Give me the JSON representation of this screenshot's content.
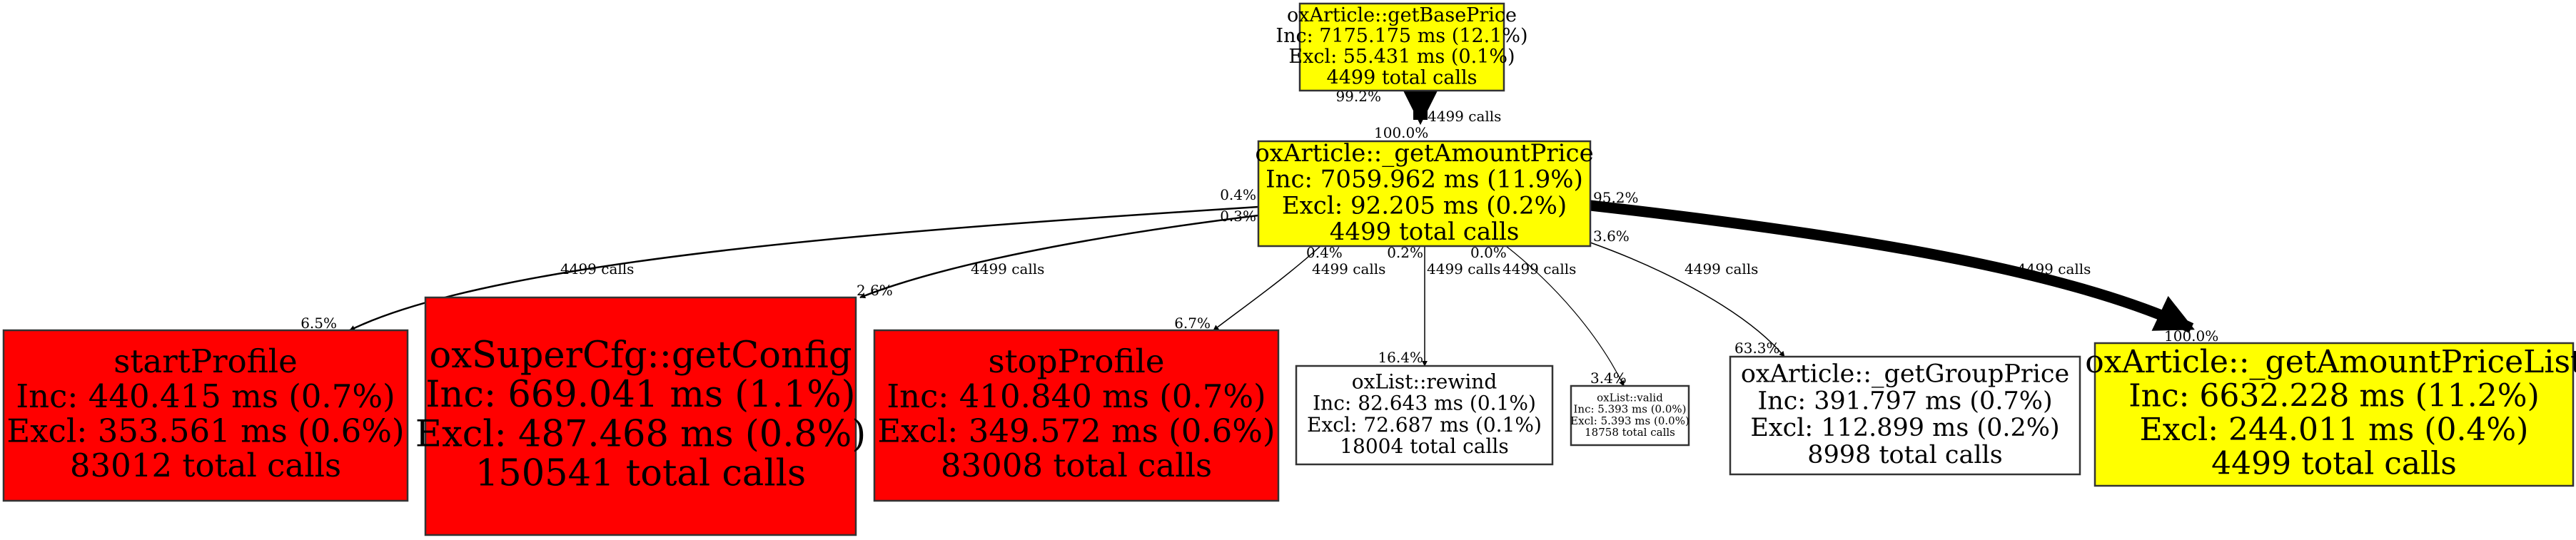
{
  "colors": {
    "hot": "#ff0000",
    "warm": "#ffff00",
    "cold": "#ffffff",
    "edge": "#000000"
  },
  "nodes": {
    "getBasePrice": {
      "lines": [
        "oxArticle::getBasePrice",
        "Inc: 7175.175 ms (12.1%)",
        "Excl: 55.431 ms (0.1%)",
        "4499 total calls"
      ],
      "color": "#ffff00"
    },
    "getAmountPrice": {
      "lines": [
        "oxArticle::_getAmountPrice",
        "Inc: 7059.962 ms (11.9%)",
        "Excl: 92.205 ms (0.2%)",
        "4499 total calls"
      ],
      "color": "#ffff00"
    },
    "startProfile": {
      "lines": [
        "startProfile",
        "Inc: 440.415 ms (0.7%)",
        "Excl: 353.561 ms (0.6%)",
        "83012 total calls"
      ],
      "color": "#ff0000"
    },
    "getConfig": {
      "lines": [
        "oxSuperCfg::getConfig",
        "Inc: 669.041 ms (1.1%)",
        "Excl: 487.468 ms (0.8%)",
        "150541 total calls"
      ],
      "color": "#ff0000"
    },
    "stopProfile": {
      "lines": [
        "stopProfile",
        "Inc: 410.840 ms (0.7%)",
        "Excl: 349.572 ms (0.6%)",
        "83008 total calls"
      ],
      "color": "#ff0000"
    },
    "rewind": {
      "lines": [
        "oxList::rewind",
        "Inc: 82.643 ms (0.1%)",
        "Excl: 72.687 ms (0.1%)",
        "18004 total calls"
      ],
      "color": "#ffffff"
    },
    "valid": {
      "lines": [
        "oxList::valid",
        "Inc: 5.393 ms (0.0%)",
        "Excl: 5.393 ms (0.0%)",
        "18758 total calls"
      ],
      "color": "#ffffff"
    },
    "getGroupPrice": {
      "lines": [
        "oxArticle::_getGroupPrice",
        "Inc: 391.797 ms (0.7%)",
        "Excl: 112.899 ms (0.2%)",
        "8998 total calls"
      ],
      "color": "#ffffff"
    },
    "getAmountPriceList": {
      "lines": [
        "oxArticle::_getAmountPriceList",
        "Inc: 6632.228 ms (11.2%)",
        "Excl: 244.011 ms (0.4%)",
        "4499 total calls"
      ],
      "color": "#ffff00"
    }
  },
  "edges": {
    "base_to_amount": {
      "from": "oxArticle::getBasePrice",
      "to": "oxArticle::_getAmountPrice",
      "tail": "99.2%",
      "calls": "4499 calls",
      "head": "100.0%"
    },
    "amount_to_start": {
      "from": "oxArticle::_getAmountPrice",
      "to": "startProfile",
      "tail": "0.4%",
      "calls": "4499 calls",
      "head": "6.5%"
    },
    "amount_to_config": {
      "from": "oxArticle::_getAmountPrice",
      "to": "oxSuperCfg::getConfig",
      "tail": "0.3%",
      "calls": "4499 calls",
      "head": "2.6%"
    },
    "amount_to_stop": {
      "from": "oxArticle::_getAmountPrice",
      "to": "stopProfile",
      "tail": "0.4%",
      "calls": "4499 calls",
      "head": "6.7%"
    },
    "amount_to_rewind": {
      "from": "oxArticle::_getAmountPrice",
      "to": "oxList::rewind",
      "tail": "0.2%",
      "calls": "4499 calls",
      "head": "16.4%"
    },
    "amount_to_valid": {
      "from": "oxArticle::_getAmountPrice",
      "to": "oxList::valid",
      "tail": "0.0%",
      "calls": "4499 calls",
      "head": "3.4%"
    },
    "amount_to_group": {
      "from": "oxArticle::_getAmountPrice",
      "to": "oxArticle::_getGroupPrice",
      "tail": "3.6%",
      "calls": "4499 calls",
      "head": "63.3%"
    },
    "amount_to_list": {
      "from": "oxArticle::_getAmountPrice",
      "to": "oxArticle::_getAmountPriceList",
      "tail": "95.2%",
      "calls": "4499 calls",
      "head": "100.0%"
    }
  }
}
